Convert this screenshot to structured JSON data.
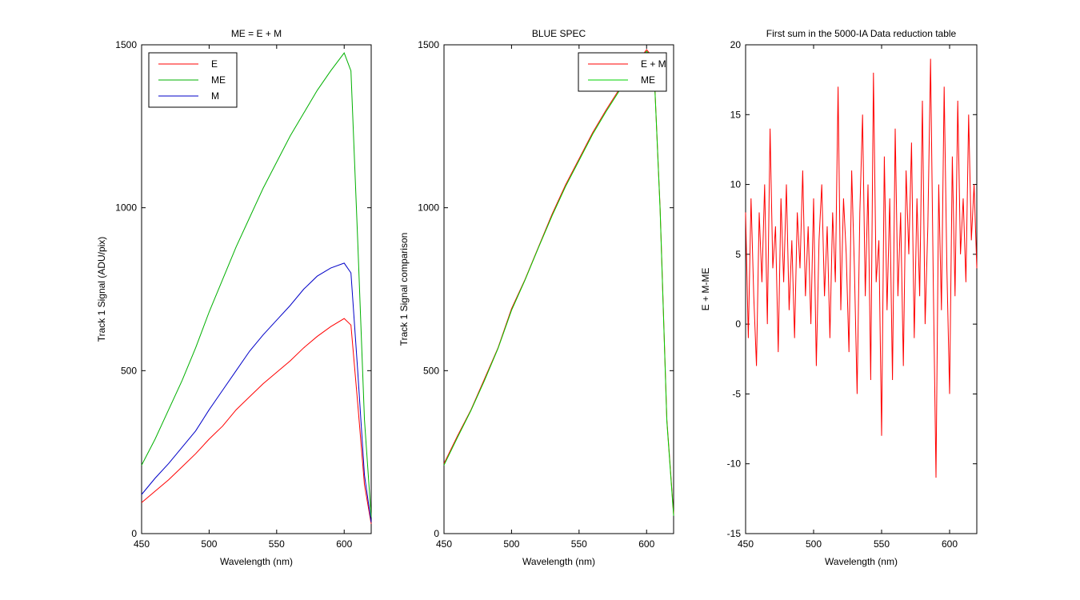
{
  "chart_data": [
    {
      "type": "line",
      "title": "ME = E + M",
      "x_label": "Wavelength (nm)",
      "y_label": "Track 1 Signal (ADU/pix)",
      "x": [
        450,
        460,
        470,
        480,
        490,
        500,
        510,
        520,
        530,
        540,
        550,
        560,
        570,
        580,
        590,
        600,
        605,
        610,
        615,
        620
      ],
      "series": [
        {
          "name": "E",
          "color": "#ff0000",
          "values": [
            95,
            130,
            165,
            205,
            245,
            290,
            330,
            380,
            420,
            460,
            495,
            530,
            570,
            605,
            635,
            660,
            640,
            400,
            150,
            30
          ]
        },
        {
          "name": "ME",
          "color": "#00b000",
          "values": [
            210,
            290,
            380,
            470,
            570,
            680,
            780,
            880,
            970,
            1060,
            1140,
            1220,
            1290,
            1360,
            1420,
            1475,
            1420,
            900,
            350,
            50
          ]
        },
        {
          "name": "M",
          "color": "#0000c8",
          "values": [
            120,
            170,
            215,
            265,
            315,
            380,
            440,
            500,
            560,
            610,
            655,
            700,
            750,
            790,
            815,
            830,
            800,
            500,
            180,
            35
          ]
        }
      ],
      "xlim": [
        450,
        620
      ],
      "xticks": [
        450,
        500,
        550,
        600
      ],
      "ylim": [
        0,
        1500
      ],
      "yticks": [
        0,
        500,
        1000,
        1500
      ],
      "legend": "upper-left"
    },
    {
      "type": "line",
      "title": "BLUE SPEC",
      "x_label": "Wavelength (nm)",
      "y_label": "Track 1 Signal comparison",
      "x": [
        450,
        460,
        470,
        480,
        490,
        500,
        510,
        520,
        530,
        540,
        550,
        560,
        570,
        580,
        590,
        600,
        603,
        606,
        610,
        615,
        620
      ],
      "series": [
        {
          "name": "E + M",
          "color": "#ff0000",
          "values": [
            215,
            300,
            380,
            475,
            570,
            690,
            780,
            880,
            980,
            1070,
            1150,
            1230,
            1300,
            1365,
            1430,
            1485,
            1470,
            1380,
            1000,
            350,
            60
          ]
        },
        {
          "name": "ME",
          "color": "#00d000",
          "values": [
            210,
            295,
            378,
            470,
            568,
            685,
            778,
            878,
            975,
            1065,
            1145,
            1225,
            1295,
            1360,
            1425,
            1480,
            1468,
            1378,
            995,
            345,
            55
          ]
        }
      ],
      "xlim": [
        450,
        620
      ],
      "xticks": [
        450,
        500,
        550,
        600
      ],
      "ylim": [
        0,
        1500
      ],
      "yticks": [
        0,
        500,
        1000,
        1500
      ],
      "legend": "upper-right"
    },
    {
      "type": "line",
      "title": "First sum in the 5000-IA Data reduction table",
      "x_label": "Wavelength (nm)",
      "y_label": "E + M-ME",
      "x": [
        450,
        452,
        454,
        456,
        458,
        460,
        462,
        464,
        466,
        468,
        470,
        472,
        474,
        476,
        478,
        480,
        482,
        484,
        486,
        488,
        490,
        492,
        494,
        496,
        498,
        500,
        502,
        504,
        506,
        508,
        510,
        512,
        514,
        516,
        518,
        520,
        522,
        524,
        526,
        528,
        530,
        532,
        534,
        536,
        538,
        540,
        542,
        544,
        546,
        548,
        550,
        552,
        554,
        556,
        558,
        560,
        562,
        564,
        566,
        568,
        570,
        572,
        574,
        576,
        578,
        580,
        582,
        584,
        586,
        588,
        590,
        592,
        594,
        596,
        598,
        600,
        602,
        604,
        606,
        608,
        610,
        612,
        614,
        616,
        618,
        620
      ],
      "series": [
        {
          "name": "E + M-ME",
          "color": "#ff0000",
          "values": [
            8,
            -1,
            9,
            2,
            -3,
            8,
            3,
            10,
            0,
            14,
            4,
            7,
            -2,
            9,
            3,
            10,
            1,
            6,
            -1,
            8,
            4,
            11,
            2,
            7,
            0,
            9,
            -3,
            6,
            10,
            2,
            7,
            -1,
            8,
            3,
            17,
            1,
            9,
            5,
            -2,
            11,
            4,
            -5,
            8,
            15,
            2,
            10,
            -4,
            18,
            3,
            6,
            -8,
            12,
            1,
            9,
            -4,
            14,
            2,
            8,
            -3,
            11,
            5,
            13,
            -1,
            9,
            2,
            16,
            0,
            7,
            19,
            3,
            -11,
            10,
            1,
            17,
            4,
            -5,
            12,
            2,
            16,
            5,
            9,
            3,
            15,
            6,
            10,
            4
          ]
        }
      ],
      "xlim": [
        450,
        620
      ],
      "xticks": [
        450,
        500,
        550,
        600
      ],
      "ylim": [
        -15,
        20
      ],
      "yticks": [
        -15,
        -10,
        -5,
        0,
        5,
        10,
        15,
        20
      ]
    }
  ]
}
